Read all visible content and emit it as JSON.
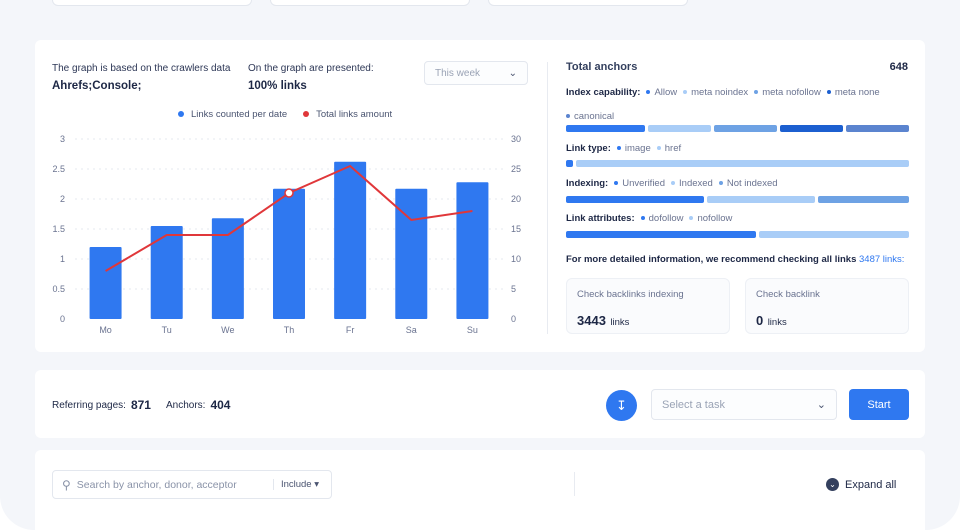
{
  "graph_info": {
    "source_label": "The graph is based on the crawlers data",
    "source_value": "Ahrefs;Console;",
    "presented_label": "On the graph are presented:",
    "presented_value": "100% links",
    "period_select": "This week"
  },
  "chart_data": {
    "type": "bar",
    "categories": [
      "Mo",
      "Tu",
      "We",
      "Th",
      "Fr",
      "Sa",
      "Su"
    ],
    "series": [
      {
        "name": "Links counted per date",
        "type": "bar",
        "axis": "left",
        "color": "#2f78f0",
        "values": [
          1.2,
          1.55,
          1.68,
          2.17,
          2.62,
          2.17,
          2.28
        ]
      },
      {
        "name": "Total links amount",
        "type": "line",
        "axis": "right",
        "color": "#e0373a",
        "values": [
          8,
          14,
          14,
          21,
          25.5,
          16.5,
          18
        ]
      }
    ],
    "y_left": {
      "ylim": [
        0,
        3
      ],
      "ticks": [
        "0",
        "0.5",
        "1",
        "1.5",
        "2",
        "2.5",
        "3"
      ]
    },
    "y_right": {
      "ylim": [
        0,
        30
      ],
      "ticks": [
        "0",
        "5",
        "10",
        "15",
        "20",
        "25",
        "30"
      ]
    },
    "grid": true,
    "legend": "top-center"
  },
  "anchors": {
    "title": "Total anchors",
    "total": "648",
    "index_capability": {
      "label": "Index capability:",
      "items": [
        {
          "name": "Allow",
          "color": "#2f78f0",
          "share": 24
        },
        {
          "name": "meta noindex",
          "color": "#a9cdf7",
          "share": 19
        },
        {
          "name": "meta nofollow",
          "color": "#6ea2e4",
          "share": 19
        },
        {
          "name": "meta none",
          "color": "#1c5fd0",
          "share": 19
        },
        {
          "name": "canonical",
          "color": "#5b84cf",
          "share": 19
        }
      ]
    },
    "link_type": {
      "label": "Link type:",
      "items": [
        {
          "name": "image",
          "color": "#2f78f0",
          "share": 2
        },
        {
          "name": "href",
          "color": "#a9cdf7",
          "share": 98
        }
      ]
    },
    "indexing": {
      "label": "Indexing:",
      "items": [
        {
          "name": "Unverified",
          "color": "#2f78f0",
          "share": 41
        },
        {
          "name": "Indexed",
          "color": "#a9cdf7",
          "share": 32
        },
        {
          "name": "Not indexed",
          "color": "#6ea2e4",
          "share": 27
        }
      ]
    },
    "link_attributes": {
      "label": "Link attributes:",
      "items": [
        {
          "name": "dofollow",
          "color": "#2f78f0",
          "share": 56
        },
        {
          "name": "nofollow",
          "color": "#a9cdf7",
          "share": 44
        }
      ]
    },
    "recommend_text": "For more detailed information, we recommend checking all links",
    "recommend_link": "3487 links:",
    "check_indexing": {
      "label": "Check backlinks indexing",
      "value": "3443",
      "unit": "links"
    },
    "check_backlink": {
      "label": "Check backlink",
      "value": "0",
      "unit": "links"
    }
  },
  "summary": {
    "referring_label": "Referring pages:",
    "referring_value": "871",
    "anchors_label": "Anchors:",
    "anchors_value": "404",
    "task_placeholder": "Select a task",
    "start_label": "Start"
  },
  "filter": {
    "search_placeholder": "Search by anchor, donor, acceptor",
    "include_label": "Include",
    "expand_label": "Expand all"
  }
}
